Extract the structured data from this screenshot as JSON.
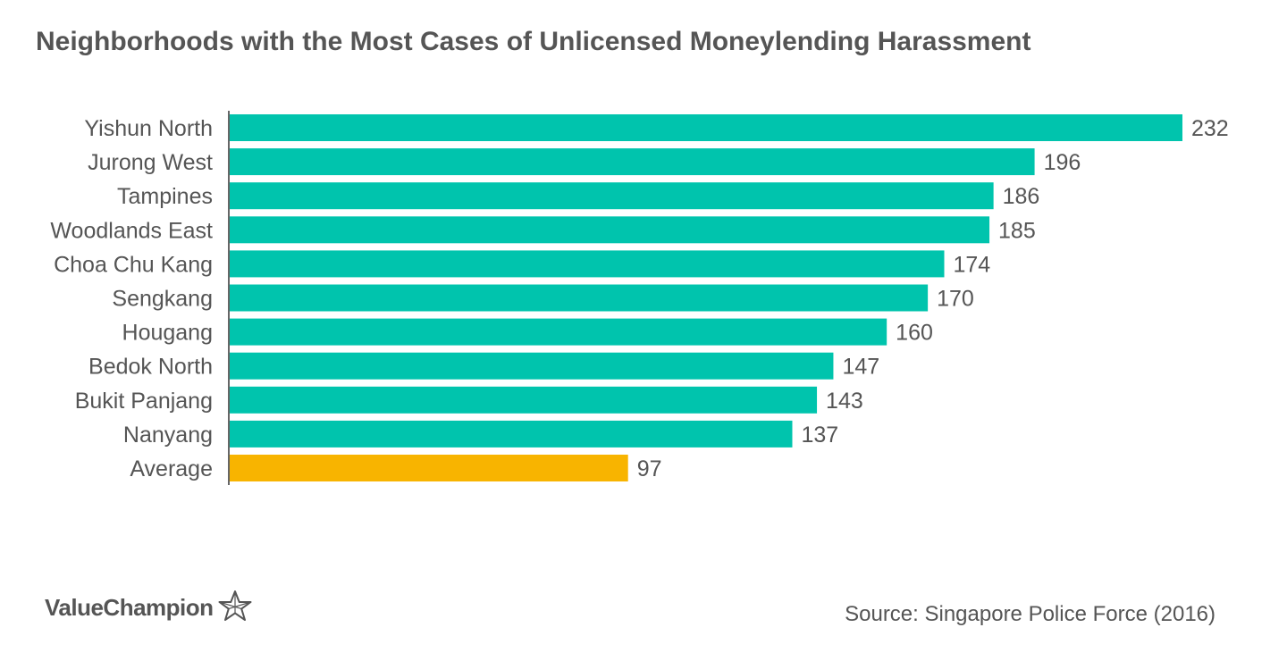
{
  "chart_data": {
    "type": "bar",
    "orientation": "horizontal",
    "title": "Neighborhoods with the Most Cases of Unlicensed Moneylending Harassment",
    "categories": [
      "Yishun North",
      "Jurong West",
      "Tampines",
      "Woodlands East",
      "Choa Chu Kang",
      "Sengkang",
      "Hougang",
      "Bedok North",
      "Bukit Panjang",
      "Nanyang",
      "Average"
    ],
    "values": [
      232,
      196,
      186,
      185,
      174,
      170,
      160,
      147,
      143,
      137,
      97
    ],
    "highlight_category": "Average",
    "colors": {
      "bar": "#00c4ad",
      "highlight": "#f8b400",
      "axis": "#666666",
      "text": "#555555"
    },
    "xlim": [
      0,
      232
    ],
    "xlabel": "",
    "ylabel": "",
    "grid": false,
    "data_labels": true
  },
  "brand": {
    "name": "ValueChampion",
    "icon": "star-outline-icon"
  },
  "source": "Source: Singapore Police Force (2016)"
}
